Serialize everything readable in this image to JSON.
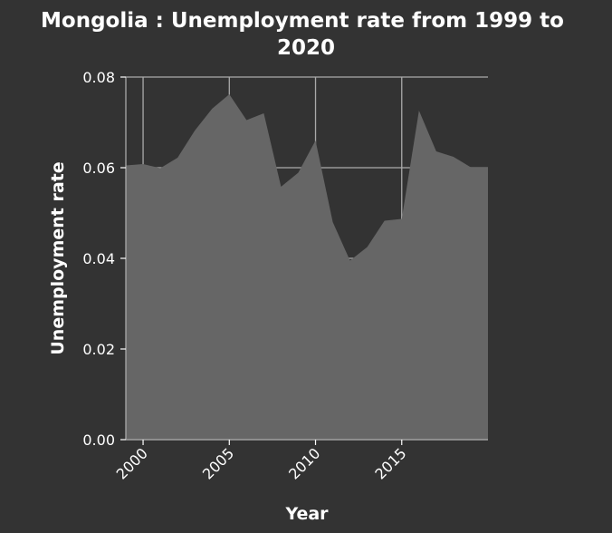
{
  "chart_data": {
    "type": "area",
    "title": "Mongolia : Unemployment rate from 1999 to 2020",
    "xlabel": "Year",
    "ylabel": "Unemployment rate",
    "xlim": [
      1999,
      2020
    ],
    "ylim": [
      0.0,
      0.08
    ],
    "xticks": [
      "2000",
      "2005",
      "2010",
      "2015"
    ],
    "yticks": [
      "0.00",
      "0.02",
      "0.04",
      "0.06",
      "0.08"
    ],
    "grid": true,
    "legend": "none",
    "x": [
      1999,
      2000,
      2001,
      2002,
      2003,
      2004,
      2005,
      2006,
      2007,
      2008,
      2009,
      2010,
      2011,
      2012,
      2013,
      2014,
      2015,
      2016,
      2017,
      2018,
      2019,
      2020
    ],
    "series": [
      {
        "values": [
          0.0605,
          0.0608,
          0.0599,
          0.0622,
          0.0682,
          0.073,
          0.0762,
          0.0705,
          0.072,
          0.0558,
          0.0589,
          0.066,
          0.048,
          0.0395,
          0.0425,
          0.0483,
          0.0487,
          0.0726,
          0.0636,
          0.0624,
          0.0601,
          0.0601
        ]
      }
    ],
    "colors": {
      "background": "#333333",
      "area": "#666666",
      "grid": "#aaaaaa",
      "text": "#ffffff"
    }
  }
}
